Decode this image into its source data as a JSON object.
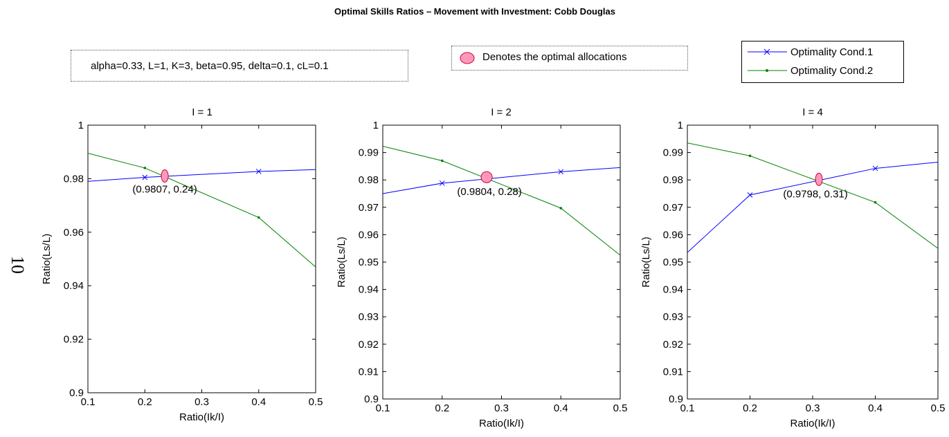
{
  "title": "Optimal Skills Ratios – Movement with Investment: Cobb Douglas",
  "params_text": "alpha=0.33, L=1, K=3, beta=0.95, delta=0.1, cL=0.1",
  "optimal_note": "Denotes the optimal allocations",
  "page_number": "10",
  "legend": [
    {
      "label": "Optimality Cond.1",
      "color": "#0000ff",
      "marker": "x-marker-icon"
    },
    {
      "label": "Optimality Cond.2",
      "color": "#008000",
      "marker": "dot-marker-icon"
    }
  ],
  "colors": {
    "optimal_fill": "#ff99bb",
    "optimal_stroke": "#cc0033"
  },
  "chart_data": [
    {
      "type": "line",
      "title": "I = 1",
      "xlabel": "Ratio(Ik/I)",
      "ylabel": "Ratio(Ls/L)",
      "xlim": [
        0.1,
        0.5
      ],
      "ylim": [
        0.9,
        1.0
      ],
      "xticks": [
        "0.1",
        "0.2",
        "0.3",
        "0.4",
        "0.5"
      ],
      "yticks": [
        "0.9",
        "0.92",
        "0.94",
        "0.96",
        "0.98",
        "1"
      ],
      "series": [
        {
          "name": "Optimality Cond.1",
          "x": [
            0.1,
            0.2,
            0.4,
            0.5
          ],
          "y": [
            0.979,
            0.9805,
            0.9827,
            0.9834
          ],
          "markers": [
            0.2,
            0.4
          ]
        },
        {
          "name": "Optimality Cond.2",
          "x": [
            0.1,
            0.2,
            0.4,
            0.5
          ],
          "y": [
            0.9895,
            0.984,
            0.9655,
            0.947
          ],
          "markers": [
            0.2,
            0.4
          ]
        }
      ],
      "optimal": {
        "x": 0.235,
        "y": 0.981,
        "label": "(0.9807, 0.24)"
      }
    },
    {
      "type": "line",
      "title": "I = 2",
      "xlabel": "Ratio(Ik/I)",
      "ylabel": "Ratio(Ls/L)",
      "xlim": [
        0.1,
        0.5
      ],
      "ylim": [
        0.9,
        1.0
      ],
      "xticks": [
        "0.1",
        "0.2",
        "0.3",
        "0.4",
        "0.5"
      ],
      "yticks": [
        "0.9",
        "0.91",
        "0.92",
        "0.93",
        "0.94",
        "0.95",
        "0.96",
        "0.97",
        "0.98",
        "0.99",
        "1"
      ],
      "series": [
        {
          "name": "Optimality Cond.1",
          "x": [
            0.1,
            0.2,
            0.4,
            0.5
          ],
          "y": [
            0.975,
            0.9788,
            0.983,
            0.9845
          ],
          "markers": [
            0.2,
            0.4
          ]
        },
        {
          "name": "Optimality Cond.2",
          "x": [
            0.1,
            0.2,
            0.4,
            0.5
          ],
          "y": [
            0.9923,
            0.987,
            0.9697,
            0.9525
          ],
          "markers": [
            0.2,
            0.4
          ]
        }
      ],
      "optimal": {
        "x": 0.275,
        "y": 0.981,
        "label": "(0.9804, 0.28)"
      }
    },
    {
      "type": "line",
      "title": "I = 4",
      "xlabel": "Ratio(Ik/I)",
      "ylabel": "Ratio(Ls/L)",
      "xlim": [
        0.1,
        0.5
      ],
      "ylim": [
        0.9,
        1.0
      ],
      "xticks": [
        "0.1",
        "0.2",
        "0.3",
        "0.4",
        "0.5"
      ],
      "yticks": [
        "0.9",
        "0.91",
        "0.92",
        "0.93",
        "0.94",
        "0.95",
        "0.96",
        "0.97",
        "0.98",
        "0.99",
        "1"
      ],
      "series": [
        {
          "name": "Optimality Cond.1",
          "x": [
            0.1,
            0.2,
            0.4,
            0.5
          ],
          "y": [
            0.9535,
            0.9745,
            0.9842,
            0.9865
          ],
          "markers": [
            0.2,
            0.4
          ]
        },
        {
          "name": "Optimality Cond.2",
          "x": [
            0.1,
            0.2,
            0.4,
            0.5
          ],
          "y": [
            0.9935,
            0.9888,
            0.9718,
            0.955
          ],
          "markers": [
            0.2,
            0.4
          ]
        }
      ],
      "optimal": {
        "x": 0.31,
        "y": 0.9802,
        "label": "(0.9798, 0.31)"
      }
    }
  ]
}
